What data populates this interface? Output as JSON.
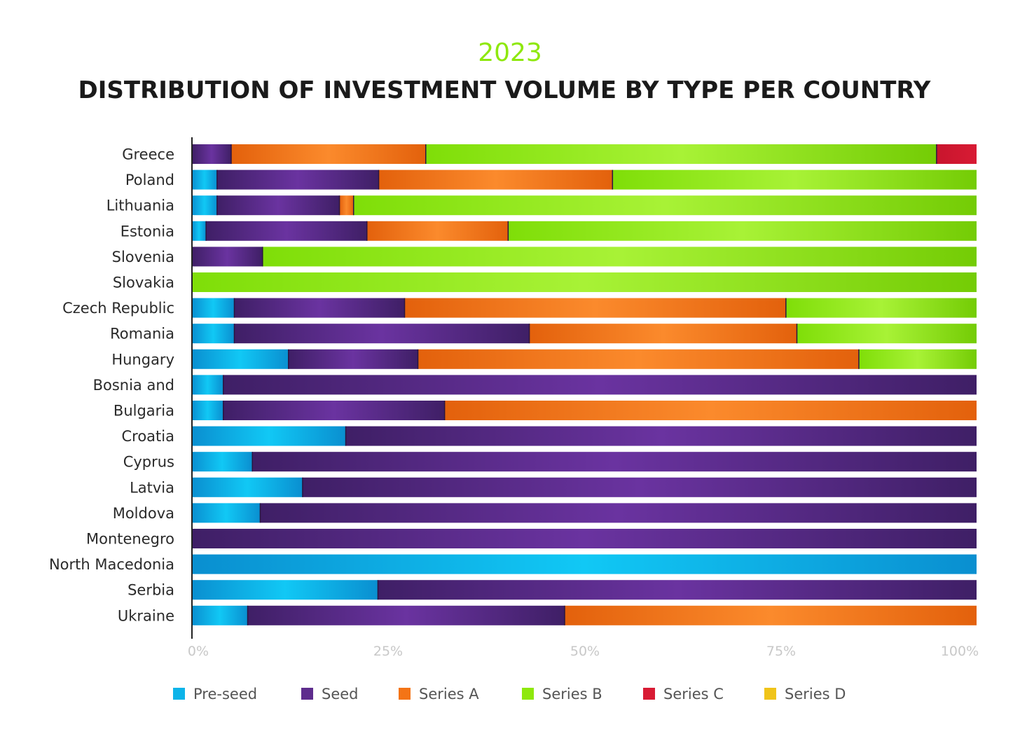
{
  "chart_data": {
    "type": "bar",
    "orientation": "horizontal",
    "stacked": true,
    "normalized": true,
    "subtitle": "2023",
    "title": "DISTRIBUTION OF INVESTMENT VOLUME BY TYPE PER COUNTRY",
    "xlabel": "",
    "ylabel": "",
    "xlim": [
      0,
      100
    ],
    "x_ticks": [
      "0%",
      "25%",
      "50%",
      "75%",
      "100%"
    ],
    "grid": false,
    "legend_position": "bottom",
    "categories": [
      "Greece",
      "Poland",
      "Lithuania",
      "Estonia",
      "Slovenia",
      "Slovakia",
      "Czech Republic",
      "Romania",
      "Hungary",
      "Bosnia and",
      "Bulgaria",
      "Croatia",
      "Cyprus",
      "Latvia",
      "Moldova",
      "Montenegro",
      "North Macedonia",
      "Serbia",
      "Ukraine"
    ],
    "series": [
      {
        "name": "Pre-seed",
        "color": "#0db4e9",
        "values": [
          0,
          3.2,
          3.2,
          1.8,
          0,
          0,
          5.4,
          5.4,
          12.3,
          4,
          4,
          19.6,
          7.7,
          14.1,
          8.7,
          0,
          100,
          23.7,
          7.1
        ]
      },
      {
        "name": "Seed",
        "color": "#5e2d8d",
        "values": [
          5,
          20.6,
          15.6,
          20.5,
          9,
          0,
          21.7,
          37.6,
          16.5,
          96,
          28.2,
          80.4,
          92.3,
          85.9,
          91.3,
          100,
          0,
          76.3,
          40.4
        ]
      },
      {
        "name": "Series A",
        "color": "#f47416",
        "values": [
          24.8,
          29.8,
          1.8,
          18,
          0,
          0,
          48.6,
          34.1,
          56.2,
          0,
          67.8,
          0,
          0,
          0,
          0,
          0,
          0,
          0,
          52.5
        ]
      },
      {
        "name": "Series B",
        "color": "#8ee80d",
        "values": [
          65.1,
          46.4,
          79.4,
          59.7,
          91,
          100,
          24.3,
          22.9,
          15,
          0,
          0,
          0,
          0,
          0,
          0,
          0,
          0,
          0,
          0
        ]
      },
      {
        "name": "Series C",
        "color": "#d81b34",
        "values": [
          5.1,
          0,
          0,
          0,
          0,
          0,
          0,
          0,
          0,
          0,
          0,
          0,
          0,
          0,
          0,
          0,
          0,
          0,
          0
        ]
      },
      {
        "name": "Series D",
        "color": "#f0c419",
        "values": [
          0,
          0,
          0,
          0,
          0,
          0,
          0,
          0,
          0,
          0,
          0,
          0,
          0,
          0,
          0,
          0,
          0,
          0,
          0
        ]
      }
    ]
  },
  "colors": {
    "subtitle": "#8ee80d",
    "title": "#1a1a1a"
  }
}
